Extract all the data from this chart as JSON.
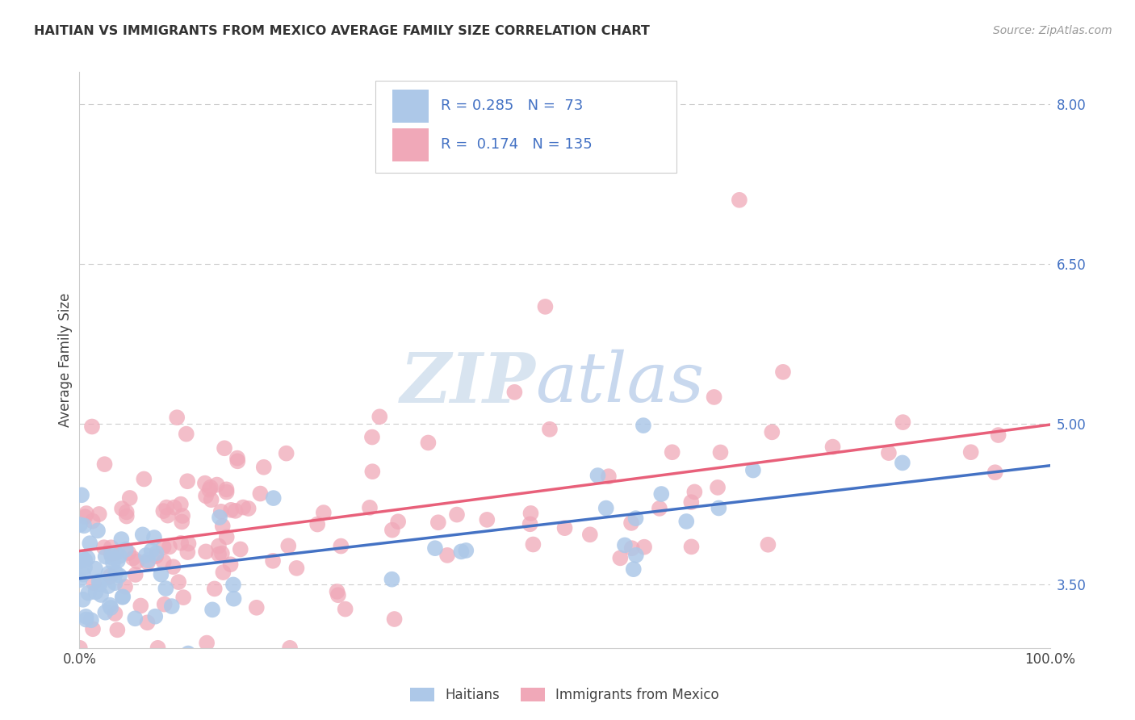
{
  "title": "HAITIAN VS IMMIGRANTS FROM MEXICO AVERAGE FAMILY SIZE CORRELATION CHART",
  "source": "Source: ZipAtlas.com",
  "ylabel": "Average Family Size",
  "right_yticks": [
    3.5,
    5.0,
    6.5,
    8.0
  ],
  "legend_r": [
    0.285,
    0.174
  ],
  "legend_n": [
    73,
    135
  ],
  "color_haitian_fill": "#adc8e8",
  "color_mexico_fill": "#f0a8b8",
  "color_trend_haitian": "#4472c4",
  "color_trend_mexico": "#e8607a",
  "background_color": "#ffffff",
  "grid_color": "#cccccc",
  "watermark_color": "#d8e4f0",
  "watermark_text": "ZIPatlas",
  "ylim_low": 2.9,
  "ylim_high": 8.3
}
